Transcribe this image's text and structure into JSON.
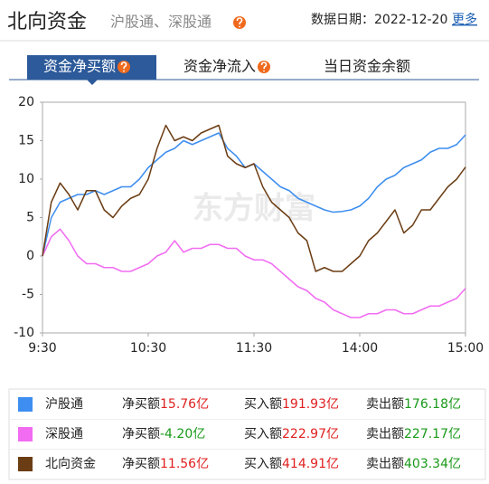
{
  "header": {
    "title": "北向资金",
    "subtitle": "沪股通、深股通",
    "date_label": "数据日期：2022-12-20",
    "more": "更多"
  },
  "tabs": {
    "items": [
      "资金净买额",
      "资金净流入",
      "当日资金余额"
    ],
    "active": 0
  },
  "chart_data": {
    "type": "line",
    "watermark": "东方财富",
    "x": [
      0,
      5,
      10,
      15,
      20,
      25,
      30,
      35,
      40,
      45,
      50,
      55,
      60,
      65,
      70,
      75,
      80,
      85,
      90,
      95,
      100,
      105,
      110,
      115,
      120,
      125,
      130,
      135,
      140,
      145,
      150,
      155,
      160,
      165,
      170,
      175,
      180,
      185,
      190,
      195,
      200,
      205,
      210,
      215,
      220,
      225,
      230,
      235,
      240
    ],
    "xlim": [
      0,
      240
    ],
    "xticks": [
      {
        "value": 0,
        "label": "9:30"
      },
      {
        "value": 60,
        "label": "10:30"
      },
      {
        "value": 120,
        "label": "11:30"
      },
      {
        "value": 180,
        "label": "14:00"
      },
      {
        "value": 240,
        "label": "15:00"
      }
    ],
    "ylim": [
      -10,
      20
    ],
    "yticks": [
      20,
      15,
      10,
      5,
      0,
      -5,
      -10
    ],
    "grid": false,
    "series": [
      {
        "name": "沪股通",
        "color": "#3d8ef0",
        "values": [
          0,
          5,
          7,
          7.5,
          8,
          8,
          8.5,
          8,
          8.5,
          9,
          9,
          10,
          11.5,
          12.5,
          13.5,
          14,
          15,
          14.5,
          15,
          15.5,
          16,
          14,
          13,
          11.5,
          12,
          11,
          10,
          9,
          8.5,
          7.5,
          7,
          6.5,
          6,
          5.7,
          5.8,
          6,
          6.5,
          7.5,
          9,
          10,
          10.5,
          11.5,
          12,
          12.5,
          13.5,
          14,
          14,
          14.5,
          15.76
        ]
      },
      {
        "name": "深股通",
        "color": "#f26cf2",
        "values": [
          0,
          2.5,
          3.5,
          2,
          0,
          -1,
          -1,
          -1.5,
          -1.5,
          -2,
          -2,
          -1.5,
          -1,
          0,
          0.5,
          2,
          0.5,
          1,
          1,
          1.5,
          1.5,
          1,
          1,
          0,
          -0.5,
          -0.5,
          -1,
          -2,
          -3,
          -4,
          -4.5,
          -5.5,
          -6,
          -7,
          -7.5,
          -8,
          -8,
          -7.5,
          -7.5,
          -7,
          -7,
          -7.5,
          -7.5,
          -7,
          -6.5,
          -6.5,
          -6,
          -5.5,
          -4.2
        ]
      },
      {
        "name": "北向资金",
        "color": "#6b3d14",
        "values": [
          0,
          7,
          9.5,
          8,
          6,
          8.5,
          8.5,
          6,
          5,
          6.5,
          7.5,
          8,
          10,
          14,
          17,
          15,
          15.5,
          15,
          16,
          16.5,
          17,
          13,
          12,
          11.5,
          12,
          9,
          7,
          6,
          5,
          3,
          2,
          -2,
          -1.5,
          -2,
          -2,
          -1,
          0,
          2,
          3,
          4.5,
          6,
          3,
          4,
          6,
          6,
          7.5,
          9,
          10,
          11.56
        ]
      }
    ]
  },
  "summary": [
    {
      "net_label": "净买额",
      "net": "15.76亿",
      "net_color": "#e02020",
      "buy_label": "买入额",
      "buy": "191.93亿",
      "sell_label": "卖出额",
      "sell": "176.18亿"
    },
    {
      "net_label": "净买额",
      "net": "-4.20亿",
      "net_color": "#199a19",
      "buy_label": "买入额",
      "buy": "222.97亿",
      "sell_label": "卖出额",
      "sell": "227.17亿"
    },
    {
      "net_label": "净买额",
      "net": "11.56亿",
      "net_color": "#e02020",
      "buy_label": "买入额",
      "buy": "414.91亿",
      "sell_label": "卖出额",
      "sell": "403.34亿"
    }
  ]
}
